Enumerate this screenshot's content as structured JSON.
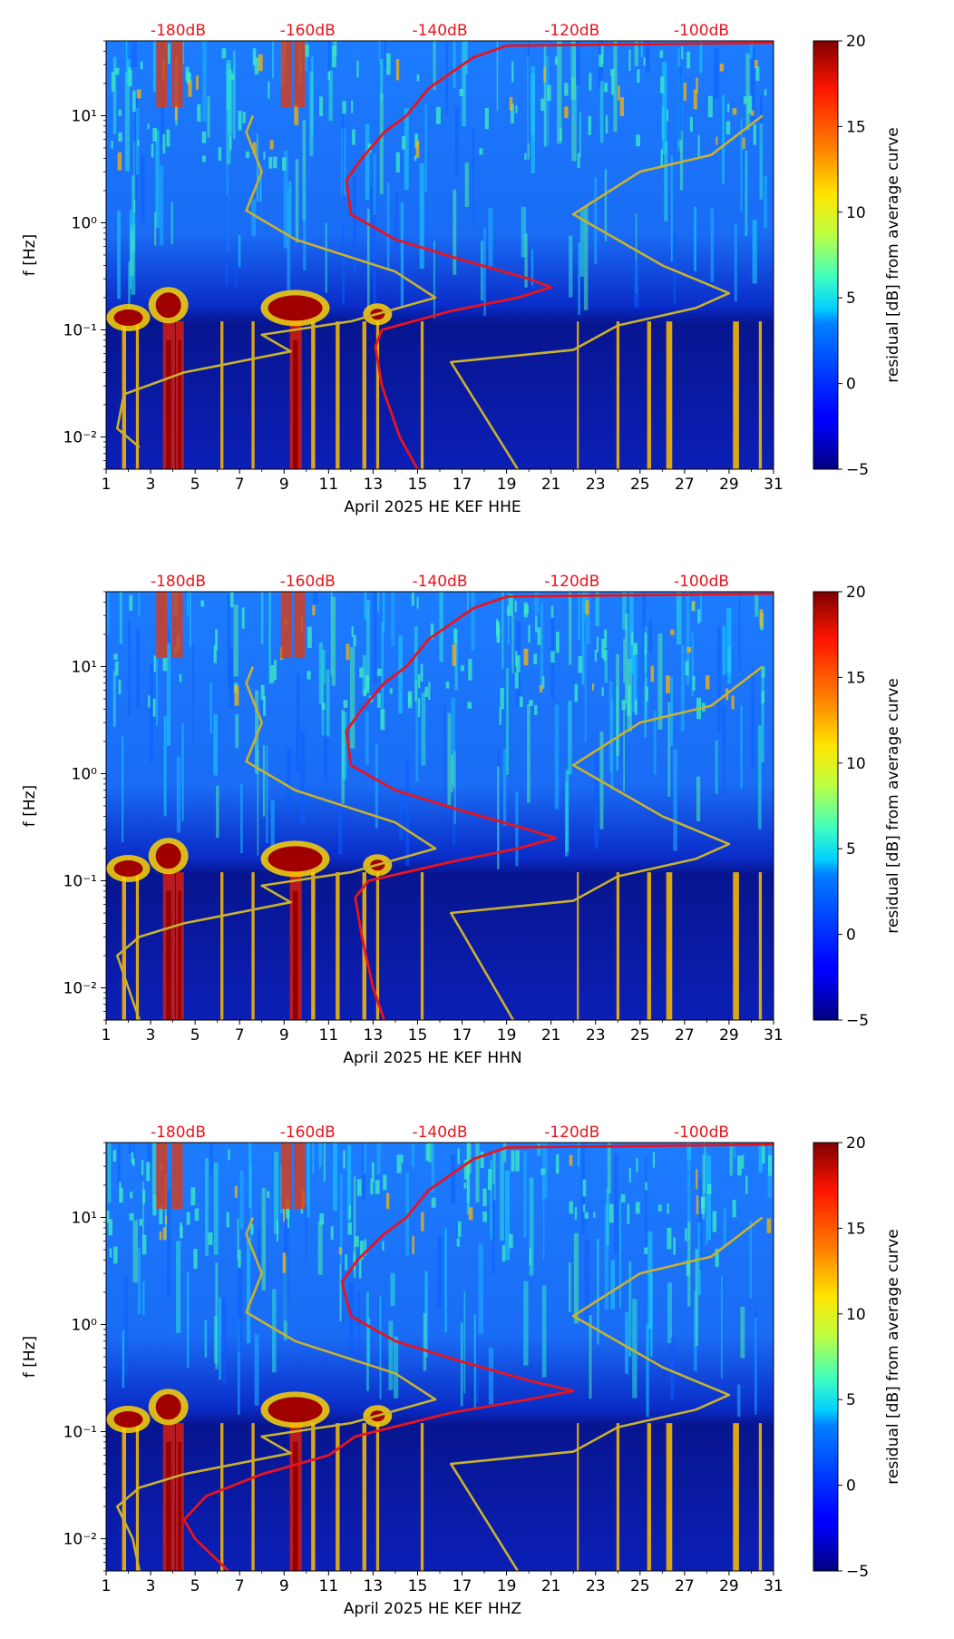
{
  "chart_data": [
    {
      "type": "heatmap",
      "panel": "HHE",
      "xlabel": "April 2025 HE KEF  HHE",
      "ylabel": "f [Hz]",
      "x_ticks": [
        "1",
        "3",
        "5",
        "7",
        "9",
        "11",
        "13",
        "15",
        "17",
        "19",
        "21",
        "23",
        "25",
        "27",
        "29",
        "31"
      ],
      "xlim": [
        1,
        31
      ],
      "y_ticks": [
        "10⁻²",
        "10⁻¹",
        "10⁰",
        "10¹"
      ],
      "ylim": [
        0.005,
        50
      ],
      "top_axis_labels": [
        "-180dB",
        "-160dB",
        "-140dB",
        "-120dB",
        "-100dB"
      ],
      "colorbar": {
        "label": "residual [dB] from average curve",
        "ticks": [
          "20",
          "15",
          "10",
          "5",
          "0",
          "−5"
        ],
        "range": [
          -5,
          20
        ]
      },
      "series": [
        {
          "name": "median PSD (red)",
          "color": "#e8141c",
          "points": [
            [
              15.0,
              0.005
            ],
            [
              14.2,
              0.01
            ],
            [
              13.4,
              0.03
            ],
            [
              13.1,
              0.07
            ],
            [
              13.4,
              0.1
            ],
            [
              16.5,
              0.15
            ],
            [
              19.5,
              0.2
            ],
            [
              21.0,
              0.25
            ],
            [
              20.0,
              0.3
            ],
            [
              17.0,
              0.45
            ],
            [
              14.0,
              0.7
            ],
            [
              12.0,
              1.2
            ],
            [
              11.8,
              2.5
            ],
            [
              12.5,
              4
            ],
            [
              13.5,
              7
            ],
            [
              14.5,
              10
            ],
            [
              15.5,
              18
            ],
            [
              17.5,
              35
            ],
            [
              19,
              45
            ],
            [
              31,
              48
            ]
          ]
        },
        {
          "name": "reference model (olive)",
          "color": "#c8b12e",
          "points": [
            [
              2.5,
              0.008
            ],
            [
              1.5,
              0.012
            ],
            [
              1.8,
              0.025
            ],
            [
              4.5,
              0.04
            ],
            [
              9.3,
              0.063
            ],
            [
              8.0,
              0.09
            ],
            [
              12.0,
              0.12
            ],
            [
              15.8,
              0.2
            ],
            [
              14.0,
              0.35
            ],
            [
              9.5,
              0.7
            ],
            [
              7.3,
              1.3
            ],
            [
              8.0,
              3
            ],
            [
              7.3,
              7
            ],
            [
              7.6,
              10
            ]
          ]
        },
        {
          "name": "reference model (olive, right)",
          "color": "#c8b12e",
          "points": [
            [
              19.5,
              0.005
            ],
            [
              16.5,
              0.05
            ],
            [
              22,
              0.065
            ],
            [
              24,
              0.11
            ],
            [
              27.5,
              0.16
            ],
            [
              29,
              0.22
            ],
            [
              26,
              0.4
            ],
            [
              22,
              1.2
            ],
            [
              25,
              3
            ],
            [
              28.2,
              4.3
            ],
            [
              30.5,
              10
            ]
          ]
        }
      ]
    },
    {
      "type": "heatmap",
      "panel": "HHN",
      "xlabel": "April 2025 HE KEF  HHN",
      "ylabel": "f [Hz]",
      "x_ticks": [
        "1",
        "3",
        "5",
        "7",
        "9",
        "11",
        "13",
        "15",
        "17",
        "19",
        "21",
        "23",
        "25",
        "27",
        "29",
        "31"
      ],
      "xlim": [
        1,
        31
      ],
      "y_ticks": [
        "10⁻²",
        "10⁻¹",
        "10⁰",
        "10¹"
      ],
      "ylim": [
        0.005,
        50
      ],
      "top_axis_labels": [
        "-180dB",
        "-160dB",
        "-140dB",
        "-120dB",
        "-100dB"
      ],
      "colorbar": {
        "label": "residual [dB] from average curve",
        "ticks": [
          "20",
          "15",
          "10",
          "5",
          "0",
          "−5"
        ],
        "range": [
          -5,
          20
        ]
      },
      "series": [
        {
          "name": "median PSD (red)",
          "color": "#e8141c",
          "points": [
            [
              13.5,
              0.005
            ],
            [
              13.0,
              0.01
            ],
            [
              12.5,
              0.03
            ],
            [
              12.2,
              0.07
            ],
            [
              12.8,
              0.1
            ],
            [
              16.5,
              0.15
            ],
            [
              19.5,
              0.2
            ],
            [
              21.2,
              0.25
            ],
            [
              20.0,
              0.3
            ],
            [
              17.0,
              0.45
            ],
            [
              14.0,
              0.7
            ],
            [
              12.0,
              1.2
            ],
            [
              11.8,
              2.5
            ],
            [
              12.5,
              4
            ],
            [
              13.5,
              7
            ],
            [
              14.5,
              10
            ],
            [
              15.5,
              18
            ],
            [
              17.5,
              35
            ],
            [
              19,
              45
            ],
            [
              31,
              48
            ]
          ]
        },
        {
          "name": "reference model (olive)",
          "color": "#c8b12e",
          "points": [
            [
              2.5,
              0.005
            ],
            [
              2.0,
              0.01
            ],
            [
              1.5,
              0.02
            ],
            [
              2.5,
              0.03
            ],
            [
              4.5,
              0.04
            ],
            [
              9.3,
              0.063
            ],
            [
              8.0,
              0.09
            ],
            [
              12.0,
              0.12
            ],
            [
              15.8,
              0.2
            ],
            [
              14.0,
              0.35
            ],
            [
              9.5,
              0.7
            ],
            [
              7.3,
              1.3
            ],
            [
              8.0,
              3
            ],
            [
              7.3,
              7
            ],
            [
              7.6,
              10
            ]
          ]
        },
        {
          "name": "reference model (olive, right)",
          "color": "#c8b12e",
          "points": [
            [
              19.3,
              0.005
            ],
            [
              16.5,
              0.05
            ],
            [
              22,
              0.065
            ],
            [
              24,
              0.11
            ],
            [
              27.5,
              0.16
            ],
            [
              29,
              0.22
            ],
            [
              26,
              0.4
            ],
            [
              22,
              1.2
            ],
            [
              25,
              3
            ],
            [
              28.2,
              4.3
            ],
            [
              30.5,
              10
            ]
          ]
        }
      ]
    },
    {
      "type": "heatmap",
      "panel": "HHZ",
      "xlabel": "April 2025 HE KEF  HHZ",
      "ylabel": "f [Hz]",
      "x_ticks": [
        "1",
        "3",
        "5",
        "7",
        "9",
        "11",
        "13",
        "15",
        "17",
        "19",
        "21",
        "23",
        "25",
        "27",
        "29",
        "31"
      ],
      "xlim": [
        1,
        31
      ],
      "y_ticks": [
        "10⁻²",
        "10⁻¹",
        "10⁰",
        "10¹"
      ],
      "ylim": [
        0.005,
        50
      ],
      "top_axis_labels": [
        "-180dB",
        "-160dB",
        "-140dB",
        "-120dB",
        "-100dB"
      ],
      "colorbar": {
        "label": "residual [dB] from average curve",
        "ticks": [
          "20",
          "15",
          "10",
          "5",
          "0",
          "−5"
        ],
        "range": [
          -5,
          20
        ]
      },
      "series": [
        {
          "name": "median PSD (red)",
          "color": "#e8141c",
          "points": [
            [
              6.5,
              0.005
            ],
            [
              5.0,
              0.01
            ],
            [
              4.5,
              0.015
            ],
            [
              5.5,
              0.025
            ],
            [
              8.0,
              0.04
            ],
            [
              11.0,
              0.06
            ],
            [
              12.2,
              0.09
            ],
            [
              16.5,
              0.15
            ],
            [
              20.0,
              0.2
            ],
            [
              22.0,
              0.24
            ],
            [
              20.0,
              0.3
            ],
            [
              17.0,
              0.45
            ],
            [
              14.0,
              0.7
            ],
            [
              12.0,
              1.2
            ],
            [
              11.6,
              2.5
            ],
            [
              12.3,
              4
            ],
            [
              13.5,
              7
            ],
            [
              14.5,
              10
            ],
            [
              15.5,
              18
            ],
            [
              17.5,
              35
            ],
            [
              19,
              45
            ],
            [
              31,
              48
            ]
          ]
        },
        {
          "name": "reference model (olive)",
          "color": "#c8b12e",
          "points": [
            [
              2.5,
              0.005
            ],
            [
              2.2,
              0.01
            ],
            [
              1.5,
              0.02
            ],
            [
              2.5,
              0.03
            ],
            [
              4.5,
              0.04
            ],
            [
              9.3,
              0.063
            ],
            [
              8.0,
              0.09
            ],
            [
              12.0,
              0.12
            ],
            [
              15.8,
              0.2
            ],
            [
              14.0,
              0.35
            ],
            [
              9.5,
              0.7
            ],
            [
              7.3,
              1.3
            ],
            [
              8.0,
              3
            ],
            [
              7.3,
              7
            ],
            [
              7.6,
              10
            ]
          ]
        },
        {
          "name": "reference model (olive, right)",
          "color": "#c8b12e",
          "points": [
            [
              19.5,
              0.005
            ],
            [
              16.5,
              0.05
            ],
            [
              22,
              0.065
            ],
            [
              24,
              0.11
            ],
            [
              27.5,
              0.16
            ],
            [
              29,
              0.22
            ],
            [
              26,
              0.4
            ],
            [
              22,
              1.2
            ],
            [
              25,
              3
            ],
            [
              28.2,
              4.3
            ],
            [
              30.5,
              10
            ]
          ]
        }
      ]
    }
  ]
}
